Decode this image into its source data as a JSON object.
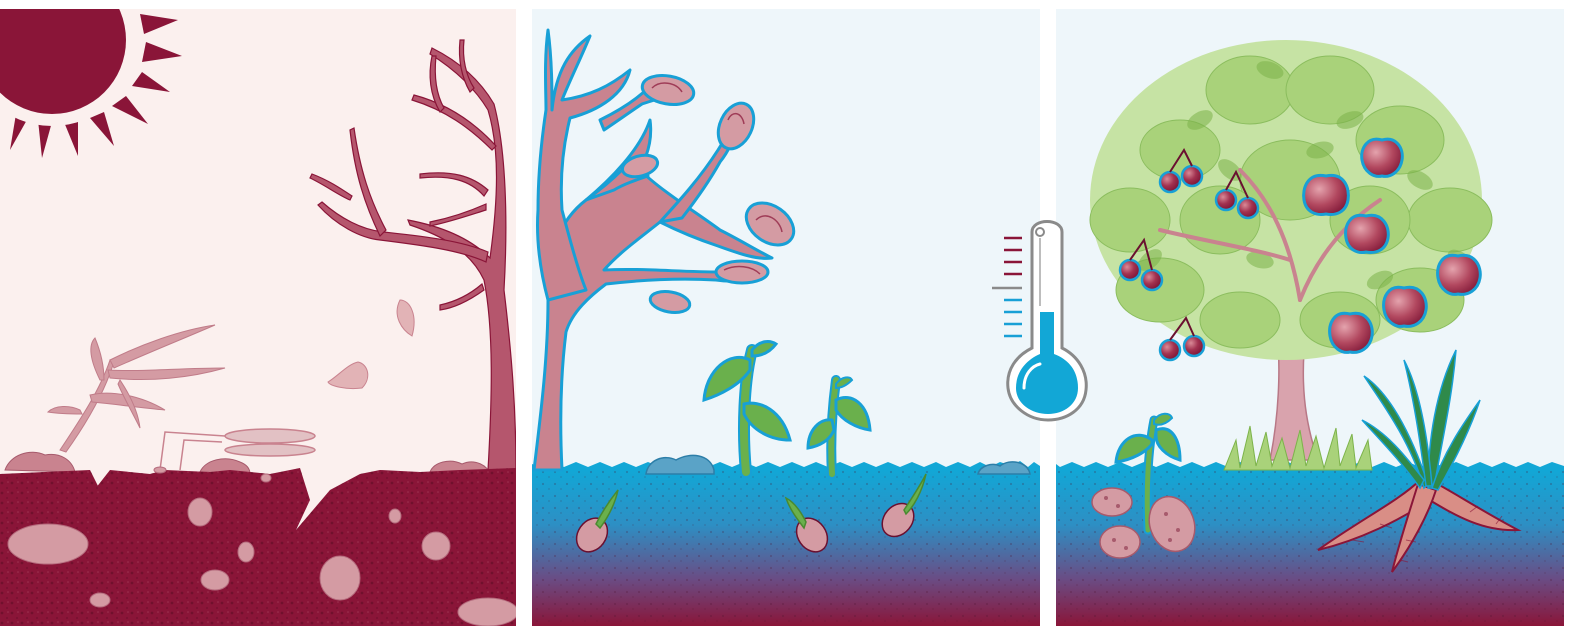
{
  "panels": [
    {
      "id": "drought",
      "sky_color": "#fbf0ee",
      "soil_color": "#8a1538"
    },
    {
      "id": "sprouting",
      "sky_color": "#eef6fa",
      "water_color": "#12a7d6",
      "soil_color": "#8a1538"
    },
    {
      "id": "harvest",
      "sky_color": "#eef6fa",
      "water_color": "#12a7d6",
      "soil_color": "#8a1538"
    }
  ],
  "palette": {
    "maroon": "#8a1538",
    "rose": "#c9838f",
    "pale_rose": "#e2b3b6",
    "water_blue": "#12a7d6",
    "leaf_green": "#6ab04c",
    "light_leaf": "#a9d27a",
    "outline_blue": "#18a0d6"
  },
  "icons": {
    "sun": "sun-icon",
    "thermometer": "thermometer-icon"
  }
}
